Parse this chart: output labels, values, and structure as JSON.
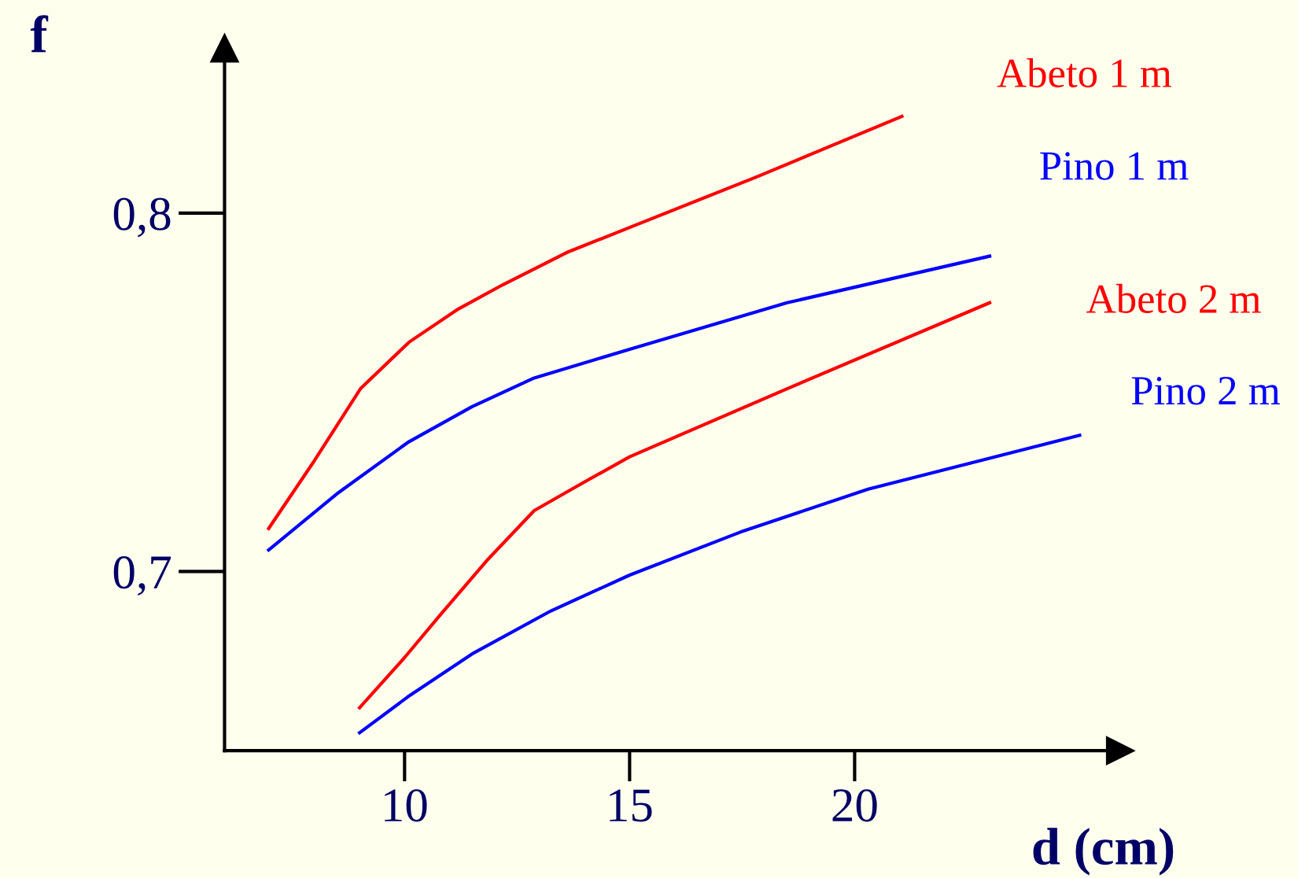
{
  "chart_data": {
    "type": "line",
    "xlabel": "d (cm)",
    "ylabel": "f",
    "xlim": [
      6,
      25.9
    ],
    "ylim": [
      0.65,
      0.846
    ],
    "xticks": [
      10,
      15,
      20
    ],
    "yticks": [
      {
        "value": 0.7,
        "label": "0,7"
      },
      {
        "value": 0.8,
        "label": "0,8"
      }
    ],
    "grid": false,
    "legend": false,
    "marker": "none",
    "line_style": "solid",
    "series": [
      {
        "name": "Abeto 1 m",
        "color": "#ff0000",
        "x": [
          6.98,
          8.0,
          9.02,
          10.1,
          11.16,
          12.18,
          13.6,
          15.0,
          17.8,
          21.05
        ],
        "values": [
          0.712,
          0.731,
          0.751,
          0.764,
          0.773,
          0.78,
          0.789,
          0.796,
          0.81,
          0.827
        ]
      },
      {
        "name": "Pino 1 m",
        "color": "#0000ff",
        "x": [
          6.98,
          8.53,
          10.07,
          11.5,
          12.88,
          15.0,
          18.5,
          23.0
        ],
        "values": [
          0.706,
          0.722,
          0.736,
          0.746,
          0.754,
          0.762,
          0.775,
          0.788
        ]
      },
      {
        "name": "Abeto 2 m",
        "color": "#ff0000",
        "x": [
          9.0,
          10.0,
          10.8,
          11.86,
          12.88,
          14.0,
          15.0,
          18.5,
          23.0
        ],
        "values": [
          0.662,
          0.676,
          0.688,
          0.7035,
          0.717,
          0.725,
          0.732,
          0.751,
          0.775
        ]
      },
      {
        "name": "Pino 2 m",
        "color": "#0000ff",
        "x": [
          9.0,
          10.07,
          11.5,
          13.25,
          15.0,
          17.46,
          20.3,
          25.0
        ],
        "values": [
          0.655,
          0.665,
          0.677,
          0.689,
          0.699,
          0.711,
          0.723,
          0.738
        ]
      }
    ]
  }
}
